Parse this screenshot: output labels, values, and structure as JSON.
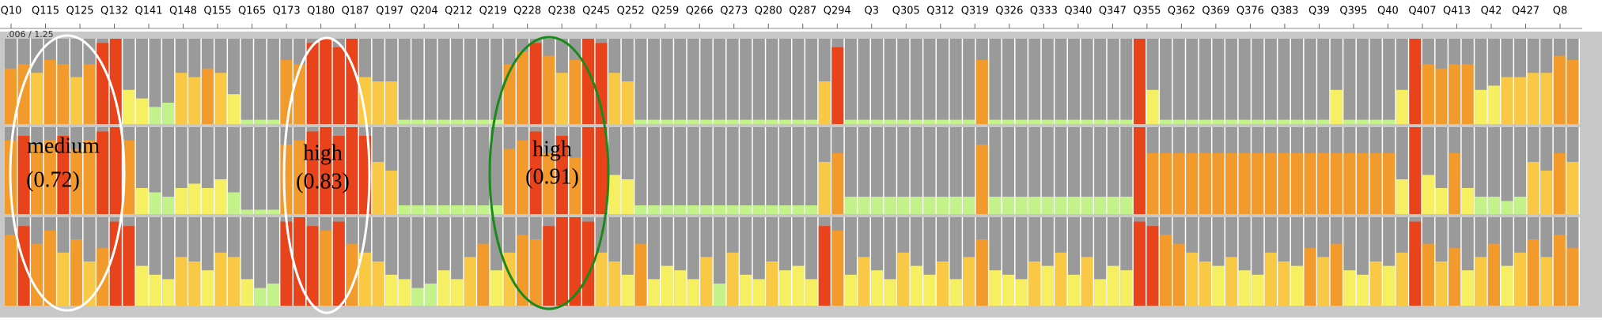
{
  "chart_data": {
    "type": "bar",
    "x_labels": [
      "Q10",
      "Q115",
      "Q125",
      "Q132",
      "Q141",
      "Q148",
      "Q155",
      "Q165",
      "Q173",
      "Q180",
      "Q187",
      "Q197",
      "Q204",
      "Q212",
      "Q219",
      "Q228",
      "Q238",
      "Q245",
      "Q252",
      "Q259",
      "Q266",
      "Q273",
      "Q280",
      "Q287",
      "Q294",
      "Q3",
      "Q305",
      "Q312",
      "Q319",
      "Q326",
      "Q333",
      "Q340",
      "Q347",
      "Q355",
      "Q362",
      "Q369",
      "Q376",
      "Q383",
      "Q39",
      "Q395",
      "Q40",
      "Q407",
      "Q413",
      "Q42",
      "Q427",
      "Q8"
    ],
    "scale_text": ".006 / 1.25",
    "ylim": [
      0,
      1
    ],
    "color_scale": [
      {
        "min": 0,
        "color": "#c4f28a"
      },
      {
        "min": 0.28,
        "color": "#f6ef62"
      },
      {
        "min": 0.5,
        "color": "#f9c845"
      },
      {
        "min": 0.62,
        "color": "#f39a2c"
      },
      {
        "min": 0.88,
        "color": "#e8431a"
      }
    ],
    "series": [
      {
        "values": [
          0.65,
          0.7,
          0.6,
          0.75,
          0.7,
          0.55,
          0.7,
          0.95,
          1,
          0.4,
          0.3,
          0.2,
          0.25,
          0.6,
          0.55,
          0.65,
          0.6,
          0.35,
          0.05,
          0.05,
          0.05,
          0.75,
          0.7,
          0.95,
          1,
          0.9,
          1,
          0.55,
          0.5,
          0.5,
          0.05,
          0.05,
          0.05,
          0.05,
          0.05,
          0.05,
          0.05,
          0.05,
          0.7,
          0.85,
          0.95,
          0.8,
          0.6,
          0.75,
          1,
          0.95,
          0.6,
          0.5,
          0.05,
          0.05,
          0.05,
          0.05,
          0.05,
          0.05,
          0.05,
          0.05,
          0.05,
          0.05,
          0.05,
          0.05,
          0.05,
          0.05,
          0.5,
          0.9,
          0.05,
          0.05,
          0.05,
          0.05,
          0.05,
          0.05,
          0.05,
          0.05,
          0.05,
          0.05,
          0.75,
          0.05,
          0.05,
          0.05,
          0.05,
          0.05,
          0.05,
          0.05,
          0.05,
          0.05,
          0.05,
          0.05,
          1,
          0.4,
          0.05,
          0.05,
          0.05,
          0.05,
          0.05,
          0.05,
          0.05,
          0.05,
          0.05,
          0.05,
          0.05,
          0.05,
          0.05,
          0.4,
          0.05,
          0.05,
          0.05,
          0.05,
          0.4,
          1,
          0.7,
          0.65,
          0.7,
          0.7,
          0.4,
          0.45,
          0.55,
          0.55,
          0.6,
          0.6,
          0.8,
          0.75
        ]
      },
      {
        "values": [
          0.85,
          0.9,
          0.8,
          0.85,
          0.9,
          0.75,
          0.85,
          0.95,
          1,
          0.85,
          0.3,
          0.25,
          0.2,
          0.3,
          0.35,
          0.3,
          0.4,
          0.25,
          0.05,
          0.05,
          0.05,
          0.8,
          0.85,
          0.95,
          1,
          0.9,
          1,
          0.9,
          0.6,
          0.5,
          0.1,
          0.1,
          0.1,
          0.1,
          0.1,
          0.1,
          0.1,
          0.1,
          0.75,
          0.85,
          0.95,
          0.7,
          0.9,
          0.65,
          1,
          1,
          0.45,
          0.4,
          0.1,
          0.1,
          0.1,
          0.1,
          0.1,
          0.1,
          0.1,
          0.1,
          0.1,
          0.1,
          0.1,
          0.1,
          0.1,
          0.1,
          0.6,
          0.7,
          0.2,
          0.2,
          0.2,
          0.2,
          0.2,
          0.2,
          0.2,
          0.2,
          0.2,
          0.2,
          0.8,
          0.2,
          0.2,
          0.2,
          0.2,
          0.2,
          0.2,
          0.2,
          0.2,
          0.2,
          0.2,
          0.2,
          1,
          0.7,
          0.7,
          0.7,
          0.7,
          0.7,
          0.7,
          0.7,
          0.7,
          0.7,
          0.7,
          0.7,
          0.7,
          0.7,
          0.7,
          0.7,
          0.7,
          0.7,
          0.7,
          0.7,
          0.4,
          1,
          0.45,
          0.3,
          0.7,
          0.3,
          0.2,
          0.2,
          0.15,
          0.2,
          0.6,
          0.5,
          0.7,
          0.6
        ]
      },
      {
        "values": [
          0.8,
          0.9,
          0.7,
          0.85,
          0.6,
          0.75,
          0.5,
          0.65,
          0.95,
          0.9,
          0.45,
          0.35,
          0.3,
          0.55,
          0.5,
          0.4,
          0.6,
          0.55,
          0.3,
          0.2,
          0.25,
          0.95,
          1,
          0.9,
          0.85,
          0.95,
          0.7,
          0.6,
          0.5,
          0.35,
          0.3,
          0.2,
          0.25,
          0.4,
          0.3,
          0.55,
          0.7,
          0.4,
          0.6,
          0.8,
          0.75,
          0.9,
          1,
          1,
          0.95,
          0.6,
          0.5,
          0.35,
          0.7,
          0.3,
          0.45,
          0.4,
          0.3,
          0.55,
          0.25,
          0.6,
          0.35,
          0.3,
          0.5,
          0.4,
          0.45,
          0.3,
          0.9,
          0.85,
          0.35,
          0.55,
          0.4,
          0.3,
          0.6,
          0.45,
          0.35,
          0.5,
          0.3,
          0.55,
          0.75,
          0.4,
          0.35,
          0.3,
          0.5,
          0.45,
          0.6,
          0.35,
          0.55,
          0.3,
          0.45,
          0.4,
          0.95,
          0.9,
          0.8,
          0.7,
          0.6,
          0.5,
          0.45,
          0.55,
          0.4,
          0.35,
          0.6,
          0.5,
          0.45,
          0.65,
          0.55,
          0.7,
          0.4,
          0.35,
          0.5,
          0.45,
          0.6,
          0.95,
          0.7,
          0.5,
          0.65,
          0.4,
          0.55,
          0.7,
          0.45,
          0.6,
          0.75,
          0.55,
          0.8,
          0.65
        ]
      }
    ],
    "annotations": [
      {
        "label": "medium",
        "score": "(0.72)"
      },
      {
        "label": "high",
        "score": "(0.83)"
      },
      {
        "label": "high",
        "score": "(0.91)"
      }
    ]
  }
}
